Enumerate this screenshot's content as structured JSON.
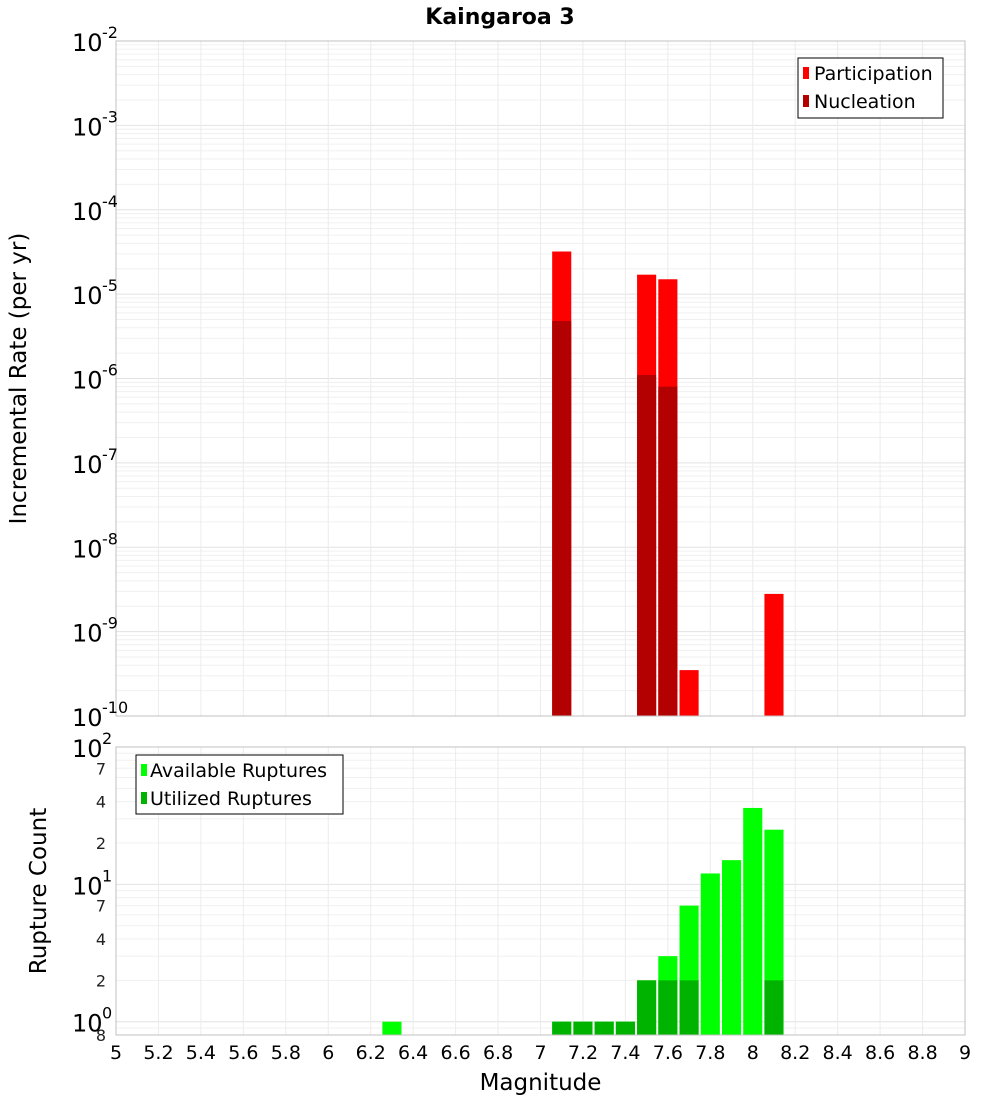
{
  "title": "Kaingaroa 3",
  "chart_data": [
    {
      "type": "bar",
      "ylabel": "Incremental Rate (per yr)",
      "yscale": "log",
      "ylim": [
        1e-10,
        0.01
      ],
      "xlim": [
        5,
        9
      ],
      "grid": true,
      "legend_position": "top-right",
      "y_tick_bases": [
        "10",
        "10",
        "10",
        "10",
        "10",
        "10",
        "10",
        "10",
        "10"
      ],
      "y_tick_exponents": [
        "-2",
        "-3",
        "-4",
        "-5",
        "-6",
        "-7",
        "-8",
        "-9",
        "-10"
      ],
      "series": [
        {
          "name": "Participation",
          "color": "#ff0000",
          "x": [
            7.1,
            7.5,
            7.6,
            7.7,
            8.1
          ],
          "values": [
            3.2e-05,
            1.7e-05,
            1.5e-05,
            3.5e-10,
            2.8e-09
          ]
        },
        {
          "name": "Nucleation",
          "color": "#b30000",
          "x": [
            7.1,
            7.5,
            7.6
          ],
          "values": [
            4.8e-06,
            1.1e-06,
            8e-07
          ]
        }
      ]
    },
    {
      "type": "bar",
      "ylabel": "Rupture Count",
      "xlabel": "Magnitude",
      "yscale": "log",
      "ylim": [
        0.8,
        100
      ],
      "xlim": [
        5,
        9
      ],
      "grid": true,
      "legend_position": "top-left",
      "y_major_ticks": [
        {
          "base": "10",
          "exp": "2",
          "value": 100
        },
        {
          "base": "10",
          "exp": "1",
          "value": 10
        },
        {
          "base": "10",
          "exp": "0",
          "value": 1
        }
      ],
      "y_minor_ticks": [
        {
          "label": "7",
          "value": 70
        },
        {
          "label": "4",
          "value": 40
        },
        {
          "label": "2",
          "value": 20
        },
        {
          "label": "7",
          "value": 7
        },
        {
          "label": "4",
          "value": 4
        },
        {
          "label": "2",
          "value": 2
        },
        {
          "label": "8",
          "value": 0.8
        }
      ],
      "x_ticks": [
        "5",
        "5.2",
        "5.4",
        "5.6",
        "5.8",
        "6",
        "6.2",
        "6.4",
        "6.6",
        "6.8",
        "7",
        "7.2",
        "7.4",
        "7.6",
        "7.8",
        "8",
        "8.2",
        "8.4",
        "8.6",
        "8.8",
        "9"
      ],
      "series": [
        {
          "name": "Available Ruptures",
          "color": "#00ff00",
          "x": [
            6.3,
            7.1,
            7.2,
            7.3,
            7.4,
            7.5,
            7.6,
            7.7,
            7.8,
            7.9,
            8.0,
            8.1
          ],
          "values": [
            1,
            1,
            1,
            1,
            1,
            2,
            3,
            7,
            12,
            15,
            36,
            25
          ]
        },
        {
          "name": "Utilized Ruptures",
          "color": "#00b300",
          "x": [
            7.1,
            7.2,
            7.3,
            7.4,
            7.5,
            7.6,
            7.7,
            8.1
          ],
          "values": [
            1,
            1,
            1,
            1,
            2,
            2,
            2,
            2
          ]
        }
      ]
    }
  ]
}
